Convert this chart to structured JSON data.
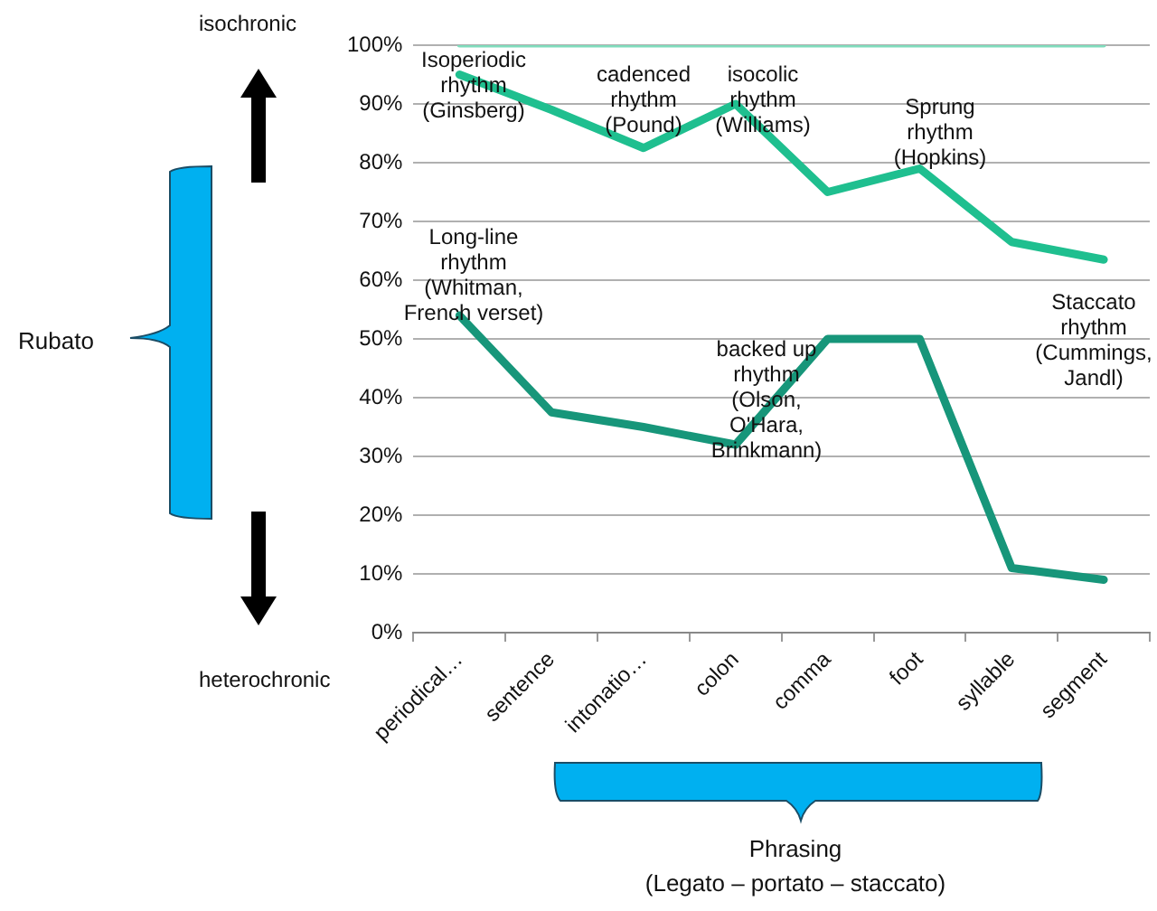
{
  "chart_data": {
    "type": "line",
    "categories": [
      "periodical…",
      "sentence",
      "intonatio…",
      "colon",
      "comma",
      "foot",
      "syllable",
      "segment"
    ],
    "series": [
      {
        "color": "#7fdcbc",
        "values": [
          100,
          100,
          100,
          100,
          100,
          100,
          100,
          100
        ]
      },
      {
        "color": "#1fbf8f",
        "values": [
          95,
          89,
          82.5,
          90,
          75,
          79,
          66.5,
          63.5
        ]
      },
      {
        "color": "#17967a",
        "values": [
          54,
          37.5,
          35,
          32,
          50,
          50,
          11,
          9
        ]
      }
    ],
    "ylim": [
      0,
      100
    ],
    "yticks": [
      {
        "value": 0,
        "label": "0%"
      },
      {
        "value": 10,
        "label": "10%"
      },
      {
        "value": 20,
        "label": "20%"
      },
      {
        "value": 30,
        "label": "30%"
      },
      {
        "value": 40,
        "label": "40%"
      },
      {
        "value": 50,
        "label": "50%"
      },
      {
        "value": 60,
        "label": "60%"
      },
      {
        "value": 70,
        "label": "70%"
      },
      {
        "value": 80,
        "label": "80%"
      },
      {
        "value": 90,
        "label": "90%"
      },
      {
        "value": 100,
        "label": "100%"
      }
    ],
    "grid": "y",
    "legend": false,
    "marker": "none",
    "line_style": "solid",
    "annotations": [
      "Isoperiodic\nrhythm\n(Ginsberg)",
      "cadenced\nrhythm\n(Pound)",
      "isocolic\nrhythm\n(Williams)",
      "Sprung\nrhythm\n(Hopkins)",
      "Long-line\nrhythm\n(Whitman,\nFrench verset)",
      "backed up\nrhythm\n(Olson,\nO'Hara,\nBrinkmann)",
      "Staccato\nrhythm\n(Cummings,\nJandl)",
      "isochronic",
      "heterochronic",
      "Rubato",
      "Phrasing\n(Legato – portato – staccato)"
    ]
  }
}
